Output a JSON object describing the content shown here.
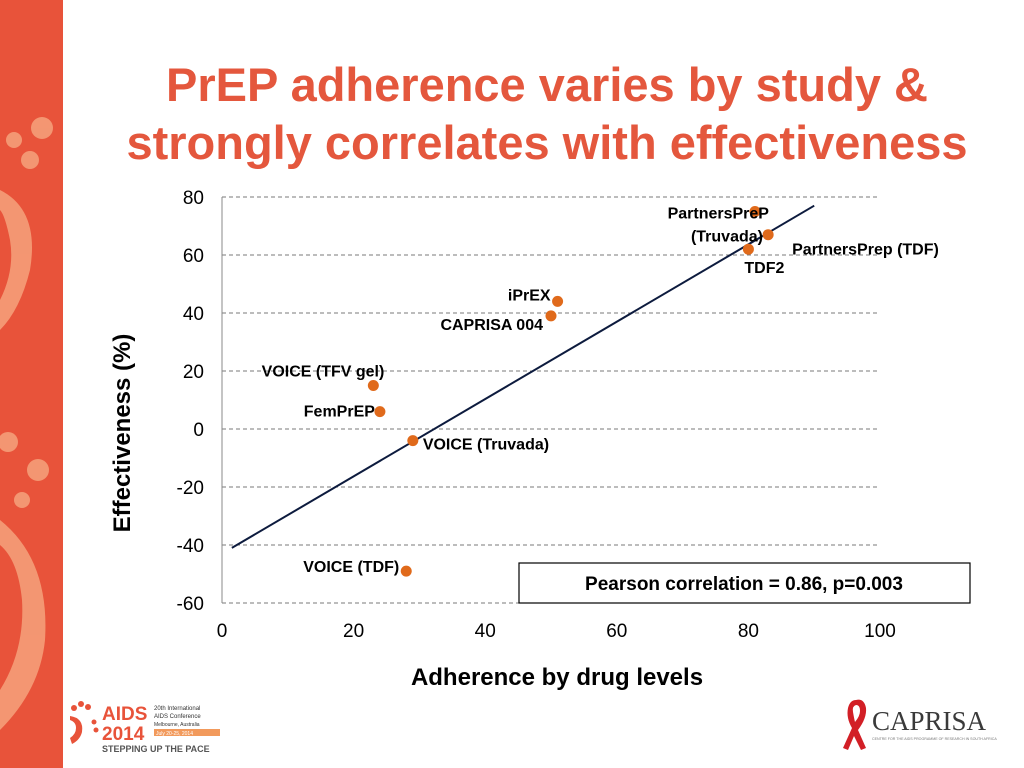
{
  "slide": {
    "title_line1": "PrEP adherence varies by study &",
    "title_line2": "strongly correlates with effectiveness",
    "accent_color": "#e8533a",
    "title_color": "#e4573d"
  },
  "chart_data": {
    "type": "scatter",
    "title": "",
    "xlabel": "Adherence by drug levels",
    "ylabel": "Effectiveness (%)",
    "xlim": [
      0,
      100
    ],
    "ylim": [
      -60,
      80
    ],
    "x_ticks": [
      0,
      20,
      40,
      60,
      80,
      100
    ],
    "y_ticks": [
      80,
      60,
      40,
      20,
      0,
      -20,
      -40,
      -60
    ],
    "grid": "horizontal dashed",
    "marker_color": "#e06a1b",
    "points": [
      {
        "label": "PartnersPreP (Truvada)",
        "x": 81,
        "y": 75
      },
      {
        "label": "PartnersPrep (TDF)",
        "x": 83,
        "y": 67
      },
      {
        "label": "TDF2",
        "x": 80,
        "y": 62
      },
      {
        "label": "iPrEX",
        "x": 51,
        "y": 44
      },
      {
        "label": "CAPRISA 004",
        "x": 50,
        "y": 39
      },
      {
        "label": "VOICE (TFV gel)",
        "x": 23,
        "y": 15
      },
      {
        "label": "FemPrEP",
        "x": 24,
        "y": 6
      },
      {
        "label": "VOICE (Truvada)",
        "x": 29,
        "y": -4
      },
      {
        "label": "VOICE (TDF)",
        "x": 28,
        "y": -49
      }
    ],
    "trendline": {
      "x": [
        1.5,
        90
      ],
      "y": [
        -41,
        77
      ]
    },
    "annotation": "Pearson correlation = 0.86, p=0.003"
  },
  "footer": {
    "aids_logo": {
      "text_main": "AIDS",
      "text_year": "2014",
      "conference_line1": "20th International",
      "conference_line2": "AIDS Conference",
      "conference_line3": "Melbourne, Australia",
      "dates": "July 20-25, 2014",
      "tagline": "STEPPING UP THE PACE"
    },
    "caprisa_logo": {
      "name": "CAPRISA",
      "subtitle": "CENTRE FOR THE AIDS PROGRAMME OF RESEARCH IN SOUTH AFRICA"
    }
  }
}
